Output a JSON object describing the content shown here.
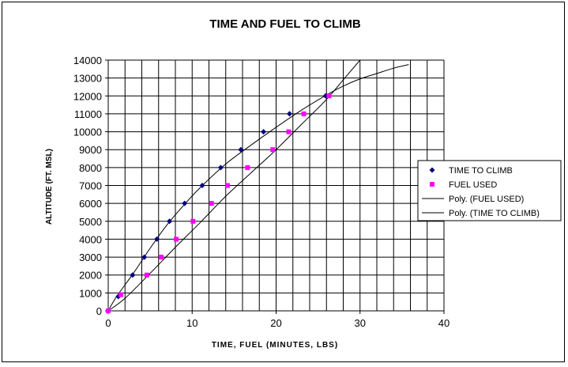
{
  "chart_data": {
    "type": "scatter",
    "title": "TIME AND FUEL TO CLIMB",
    "xlabel": "TIME, FUEL (MINUTES, LBS)",
    "ylabel": "ALTITUDE (FT. MSL)",
    "xlim": [
      0,
      40
    ],
    "ylim": [
      0,
      14000
    ],
    "x_ticks": [
      0,
      10,
      20,
      30,
      40
    ],
    "y_ticks": [
      0,
      1000,
      2000,
      3000,
      4000,
      5000,
      6000,
      7000,
      8000,
      9000,
      10000,
      11000,
      12000,
      13000,
      14000
    ],
    "grid": true,
    "legend_position": "right",
    "series": [
      {
        "name": "TIME TO CLIMB",
        "marker": "diamond",
        "color": "#000080",
        "x": [
          0,
          1.2,
          2.9,
          4.3,
          5.8,
          7.3,
          9.1,
          11.2,
          13.4,
          15.8,
          18.5,
          21.6,
          25.9
        ],
        "y": [
          0,
          800,
          2000,
          3000,
          4000,
          5000,
          6000,
          7000,
          8000,
          9000,
          10000,
          11000,
          12000
        ]
      },
      {
        "name": "FUEL USED",
        "marker": "square",
        "color": "#ff00ff",
        "x": [
          0,
          1.5,
          4.6,
          6.3,
          8.1,
          10.1,
          12.3,
          14.2,
          16.6,
          19.6,
          21.5,
          23.3,
          26.3
        ],
        "y": [
          0,
          900,
          2000,
          3000,
          4000,
          5000,
          6000,
          7000,
          8000,
          9000,
          10000,
          11000,
          12000
        ]
      },
      {
        "name": "Poly. (FUEL USED)",
        "type": "line",
        "color": "#000000",
        "x": [
          0,
          2,
          5,
          8,
          11,
          14,
          17,
          20,
          23,
          26,
          28,
          30
        ],
        "y": [
          0,
          700,
          2100,
          3550,
          4950,
          6400,
          7700,
          9000,
          10400,
          11800,
          12900,
          14000
        ]
      },
      {
        "name": "Poly. (TIME TO CLIMB)",
        "type": "line",
        "color": "#000000",
        "x": [
          0,
          1,
          3,
          5,
          7,
          9,
          11,
          14,
          17,
          20,
          23,
          26,
          28,
          30,
          32,
          34,
          35.8
        ],
        "y": [
          0,
          800,
          2100,
          3500,
          4800,
          5900,
          6900,
          8200,
          9250,
          10250,
          11200,
          12050,
          12550,
          12950,
          13250,
          13550,
          13750
        ]
      }
    ]
  }
}
